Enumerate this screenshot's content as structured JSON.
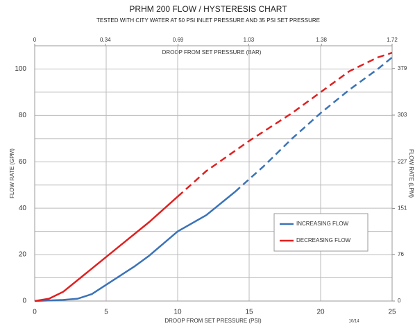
{
  "chart_data": {
    "type": "line",
    "title": "PRHM 200 FLOW / HYSTERESIS CHART",
    "subtitle": "TESTED WITH CITY WATER AT 50 PSI INLET PRESSURE AND 35 PSI SET PRESSURE",
    "x_label": "DROOP FROM SET PRESSURE (PSI)",
    "x2_label": "DROOP FROM SET PRESSURE (BAR)",
    "y_label": "FLOW RATE (GPM)",
    "y2_label": "FLOW RATE (LPM)",
    "footnote": "10/14",
    "xlim": [
      0,
      25
    ],
    "xticks": [
      0,
      5,
      10,
      15,
      20,
      25
    ],
    "x2lim": [
      0,
      1.72
    ],
    "x2ticks": [
      0,
      0.34,
      0.69,
      1.03,
      1.38,
      1.72
    ],
    "ylim": [
      0,
      110
    ],
    "yticks": [
      0,
      20,
      40,
      60,
      80,
      100
    ],
    "y_minor_ticks": [
      10,
      30,
      50,
      70,
      90,
      110
    ],
    "y2lim": [
      0,
      416
    ],
    "y2ticks": [
      0,
      76,
      151,
      227,
      303,
      379
    ],
    "grid": true,
    "legend": "lower right",
    "series": [
      {
        "name": "INCREASING FLOW",
        "color": "#3a73b8",
        "dash_start": 14,
        "x": [
          0,
          2,
          3,
          4,
          5,
          6,
          7,
          8,
          10,
          12,
          14,
          16,
          18,
          20,
          22,
          24,
          25
        ],
        "values": [
          0,
          0.5,
          1,
          3,
          7,
          11,
          15,
          19.5,
          30,
          37,
          47,
          58,
          70,
          81,
          91,
          100,
          105
        ]
      },
      {
        "name": "DECREASING FLOW",
        "color": "#e02020",
        "dash_start": 10,
        "x": [
          0,
          1,
          2,
          3,
          4,
          5,
          6,
          7,
          8,
          10,
          12,
          15,
          18,
          20,
          22,
          24,
          25
        ],
        "values": [
          0,
          1,
          4,
          9,
          14,
          19,
          24,
          29,
          34,
          45,
          56,
          69,
          81,
          90,
          99,
          105,
          107
        ]
      }
    ]
  }
}
